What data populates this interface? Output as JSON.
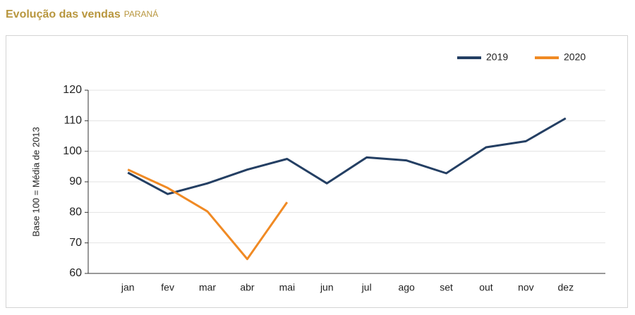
{
  "chart_data": {
    "type": "line",
    "title": "Evolução das vendas",
    "subtitle": "PARANÁ",
    "y_label": "Base 100 = Média de 2013",
    "categories": [
      "jan",
      "fev",
      "mar",
      "abr",
      "mai",
      "jun",
      "jul",
      "ago",
      "set",
      "out",
      "nov",
      "dez"
    ],
    "series": [
      {
        "name": "2019",
        "color": "#243f63",
        "values": [
          93,
          86,
          89.5,
          94,
          97.5,
          89.5,
          98,
          97,
          92.8,
          101.3,
          103.3,
          110.8
        ]
      },
      {
        "name": "2020",
        "color": "#f08a24",
        "values": [
          94,
          88,
          80.3,
          64.7,
          83.3,
          null,
          null,
          null,
          null,
          null,
          null,
          null
        ]
      }
    ],
    "ylim": [
      60,
      120
    ],
    "yticks": [
      60,
      70,
      80,
      90,
      100,
      110,
      120
    ],
    "grid": true,
    "legend": "top-right"
  }
}
